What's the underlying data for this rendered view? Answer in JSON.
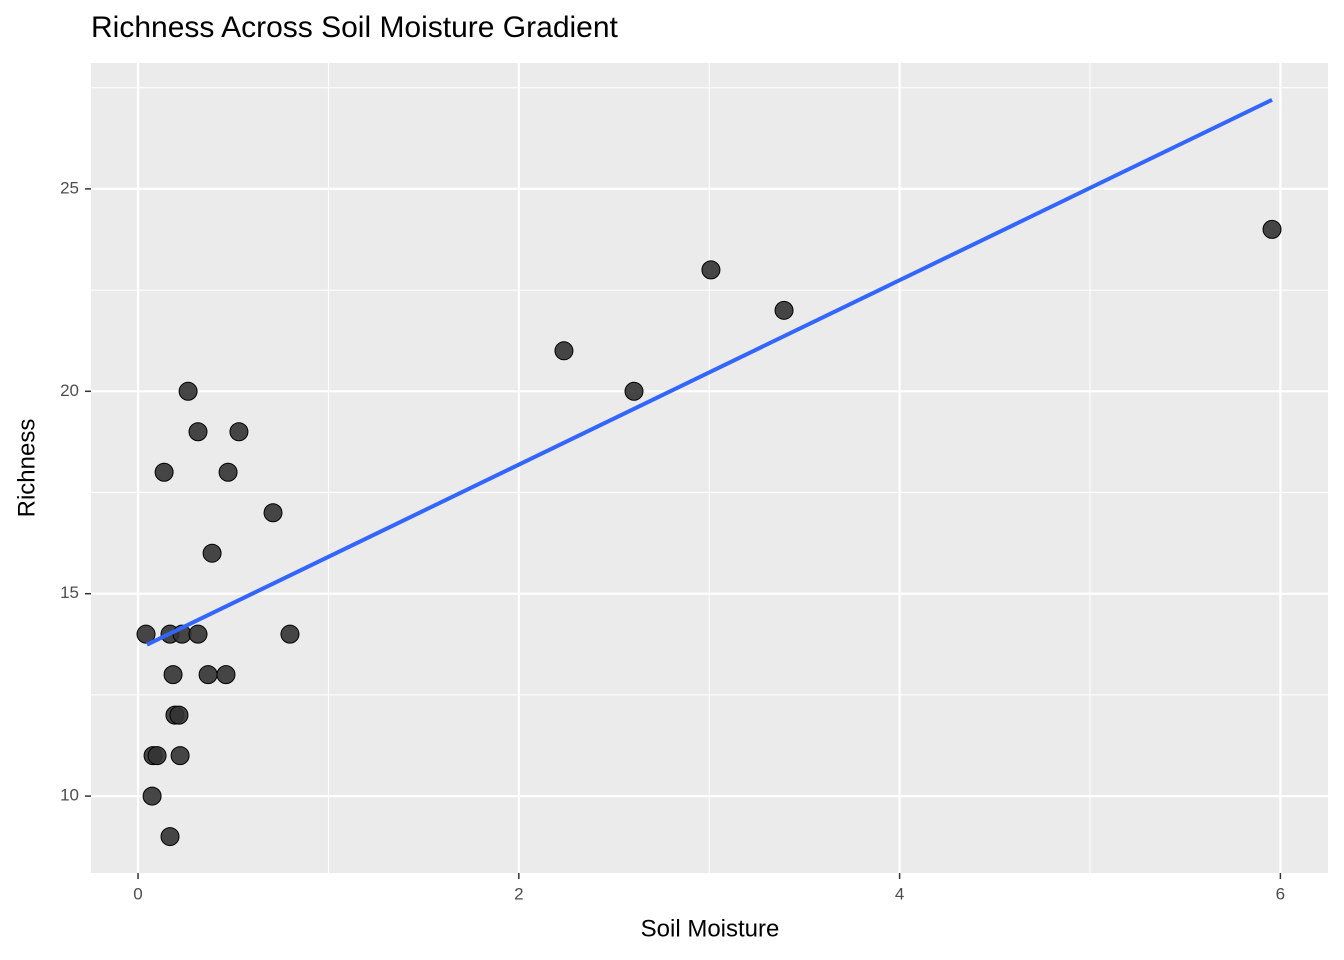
{
  "chart_data": {
    "type": "scatter",
    "title": "Richness Across Soil Moisture Gradient",
    "xlabel": "Soil Moisture",
    "ylabel": "Richness",
    "x": [
      0.042,
      0.074,
      0.079,
      0.1,
      0.137,
      0.168,
      0.168,
      0.184,
      0.194,
      0.215,
      0.221,
      0.231,
      0.263,
      0.315,
      0.315,
      0.368,
      0.389,
      0.462,
      0.473,
      0.53,
      0.709,
      0.798,
      2.237,
      2.605,
      3.009,
      3.393,
      5.956
    ],
    "values": [
      14,
      10,
      11,
      11,
      18,
      14,
      9,
      13,
      12,
      12,
      11,
      14,
      20,
      19,
      14,
      13,
      16,
      13,
      18,
      19,
      17,
      14,
      21,
      20,
      23,
      22,
      24
    ],
    "color": "#333333",
    "fit": {
      "x": [
        0.047,
        5.956
      ],
      "y": [
        13.74,
        27.2
      ],
      "color": "#3366ff"
    },
    "xlim": [
      -0.247,
      6.25
    ],
    "ylim": [
      8.1,
      28.11
    ],
    "xticks": [
      0,
      2,
      4,
      6
    ],
    "yticks": [
      10,
      15,
      20,
      25
    ],
    "xminor": [
      1,
      3,
      5
    ],
    "yminor": [
      12.5,
      17.5,
      22.5,
      27.5
    ],
    "grid": true
  }
}
